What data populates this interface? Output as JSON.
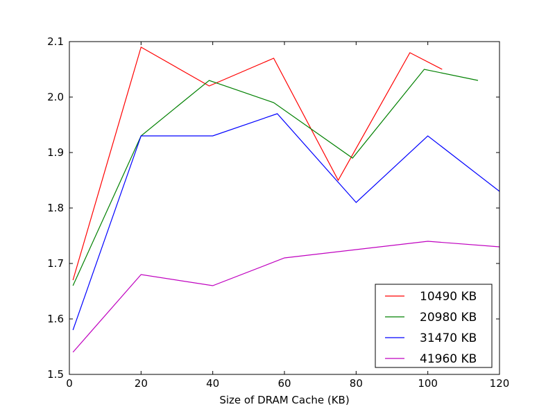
{
  "chart_data": {
    "type": "line",
    "title": "",
    "xlabel": "Size of DRAM Cache (KB)",
    "ylabel": "",
    "xlim": [
      0,
      120
    ],
    "ylim": [
      1.5,
      2.1
    ],
    "x_ticks": [
      "0",
      "20",
      "40",
      "60",
      "80",
      "100",
      "120"
    ],
    "y_ticks": [
      "1.5",
      "1.6",
      "1.7",
      "1.8",
      "1.9",
      "2.0",
      "2.1"
    ],
    "grid": false,
    "legend_position": "lower-right",
    "series": [
      {
        "name": "10490 KB",
        "color": "#ff0000",
        "x": [
          1,
          20,
          39,
          57,
          75,
          95,
          104
        ],
        "y": [
          1.67,
          2.09,
          2.02,
          2.07,
          1.85,
          2.08,
          2.05
        ]
      },
      {
        "name": "20980 KB",
        "color": "#008000",
        "x": [
          1,
          20,
          39,
          57,
          79,
          99,
          114
        ],
        "y": [
          1.66,
          1.93,
          2.03,
          1.99,
          1.89,
          2.05,
          2.03
        ]
      },
      {
        "name": "31470 KB",
        "color": "#0000ff",
        "x": [
          1,
          20,
          40,
          58,
          80,
          100,
          120
        ],
        "y": [
          1.58,
          1.93,
          1.93,
          1.97,
          1.81,
          1.93,
          1.83
        ]
      },
      {
        "name": "41960 KB",
        "color": "#bf00bf",
        "x": [
          1,
          20,
          40,
          60,
          80,
          100,
          120
        ],
        "y": [
          1.54,
          1.68,
          1.66,
          1.71,
          1.725,
          1.74,
          1.73
        ]
      }
    ]
  }
}
